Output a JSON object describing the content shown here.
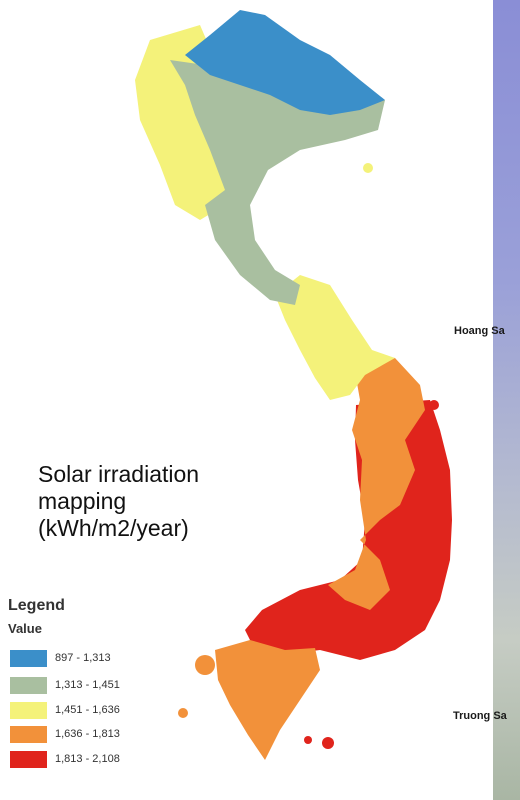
{
  "map": {
    "title_lines": [
      "Solar irradiation",
      "mapping",
      "(kWh/m2/year)"
    ],
    "island_labels": [
      "Hoang Sa",
      "Truong Sa"
    ]
  },
  "legend": {
    "title": "Legend",
    "subtitle": "Value",
    "classes": [
      {
        "label": "897 - 1,313",
        "color": "#3b8fc9"
      },
      {
        "label": "1,313 - 1,451",
        "color": "#a9bfa0"
      },
      {
        "label": "1,451 - 1,636",
        "color": "#f4f27a"
      },
      {
        "label": "1,636 - 1,813",
        "color": "#f2913a"
      },
      {
        "label": "1,813 - 2,108",
        "color": "#e0241c"
      }
    ]
  }
}
